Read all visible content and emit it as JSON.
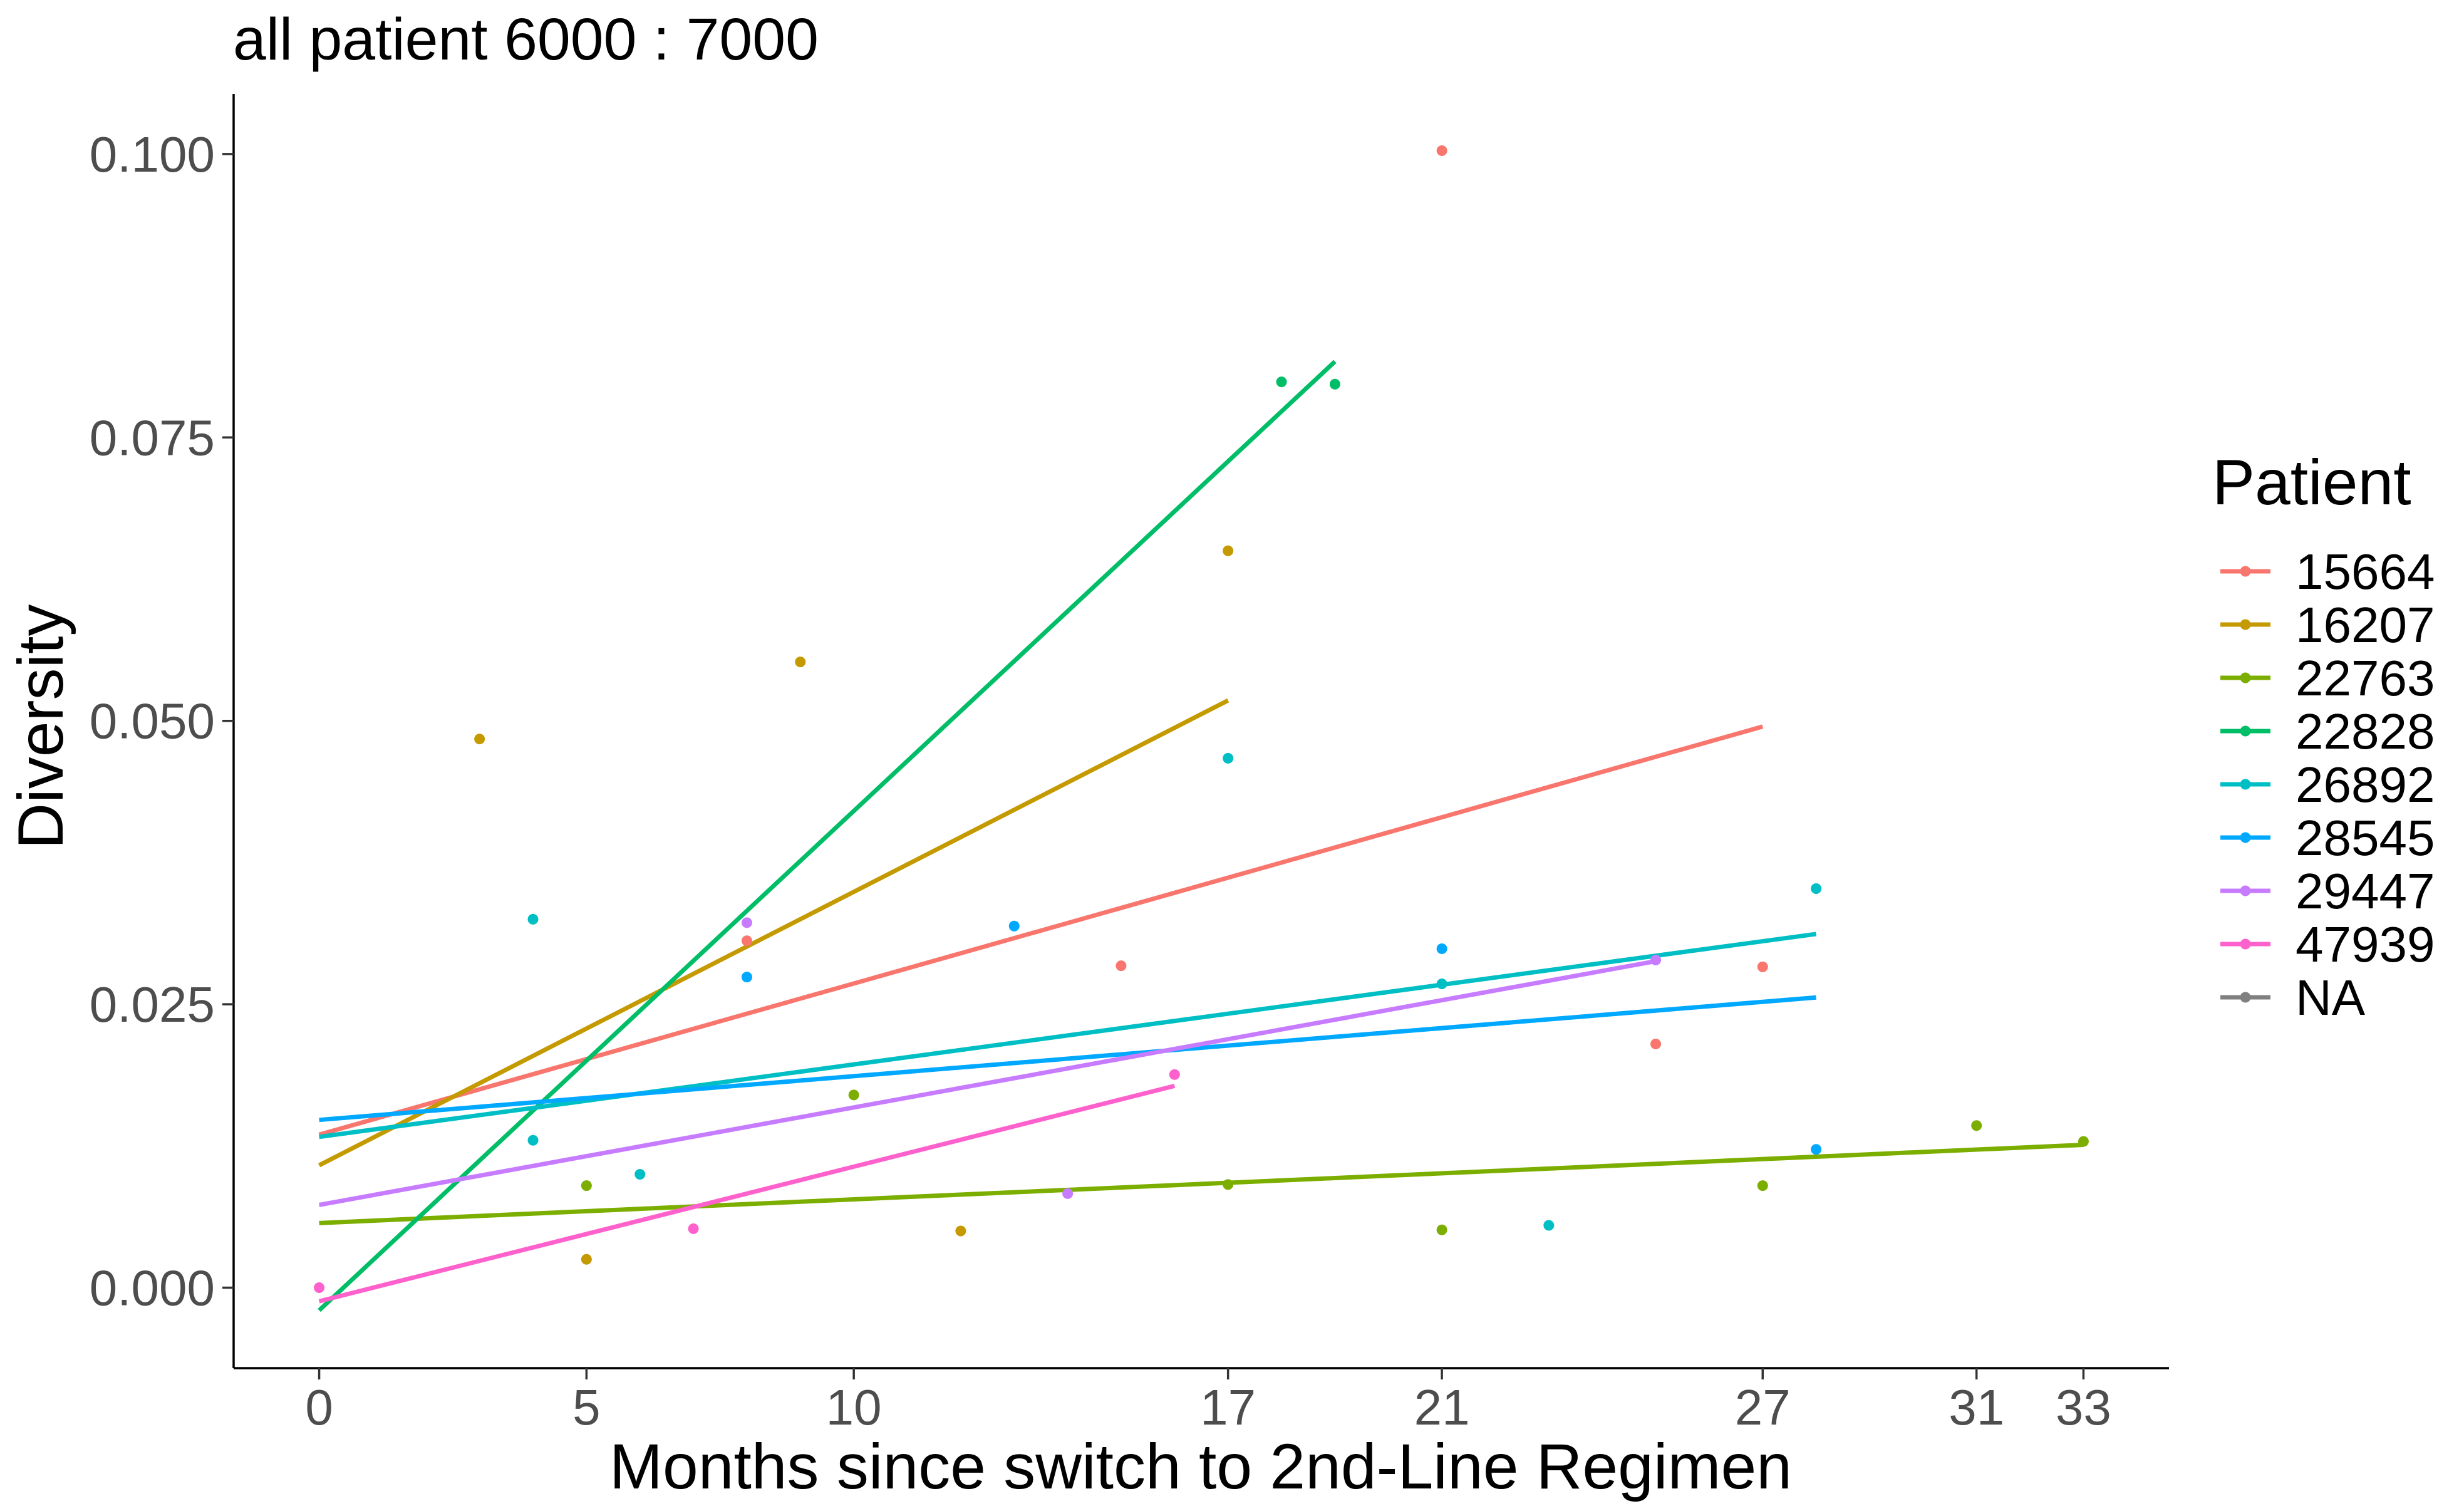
{
  "chart_data": {
    "type": "scatter",
    "title": "all patient 6000 : 7000",
    "xlabel": "Months since switch to 2nd-Line Regimen",
    "ylabel": "Diversity",
    "x_ticks": [
      0,
      5,
      10,
      17,
      21,
      27,
      31,
      33
    ],
    "y_ticks": [
      "0.000",
      "0.025",
      "0.050",
      "0.075",
      "0.100"
    ],
    "y_tick_values": [
      0,
      0.025,
      0.05,
      0.075,
      0.1
    ],
    "xlim": [
      -1.6,
      34.6
    ],
    "ylim": [
      -0.0071,
      0.1053
    ],
    "grid": false,
    "legend": {
      "title": "Patient",
      "placement": "right"
    },
    "series": [
      {
        "name": "15664",
        "color": "#F8766D",
        "points": [
          [
            8,
            0.0306
          ],
          [
            15,
            0.0284
          ],
          [
            21,
            0.1003
          ],
          [
            25,
            0.0215
          ],
          [
            27,
            0.0283
          ]
        ],
        "fit": [
          [
            0,
            0.0135
          ],
          [
            27,
            0.0495
          ]
        ]
      },
      {
        "name": "16207",
        "color": "#C49A00",
        "points": [
          [
            3,
            0.0484
          ],
          [
            5,
            0.0025
          ],
          [
            9,
            0.0552
          ],
          [
            12,
            0.005
          ],
          [
            17,
            0.065
          ]
        ],
        "fit": [
          [
            0,
            0.0108
          ],
          [
            17,
            0.0518
          ]
        ]
      },
      {
        "name": "22763",
        "color": "#7CAE00",
        "points": [
          [
            5,
            0.009
          ],
          [
            10,
            0.017
          ],
          [
            17,
            0.0091
          ],
          [
            21,
            0.0051
          ],
          [
            27,
            0.009
          ],
          [
            31,
            0.0143
          ],
          [
            33,
            0.0129
          ]
        ],
        "fit": [
          [
            0,
            0.0057
          ],
          [
            33,
            0.0126
          ]
        ]
      },
      {
        "name": "22828",
        "color": "#00BE67",
        "points": [
          [
            18,
            0.0799
          ],
          [
            19,
            0.0797
          ]
        ],
        "fit": [
          [
            0,
            -0.002
          ],
          [
            19,
            0.0817
          ]
        ]
      },
      {
        "name": "26892",
        "color": "#00BFC4",
        "points": [
          [
            4,
            0.0325
          ],
          [
            4,
            0.013
          ],
          [
            6,
            0.01
          ],
          [
            17,
            0.0467
          ],
          [
            21,
            0.0268
          ],
          [
            23,
            0.0055
          ],
          [
            28,
            0.0352
          ]
        ],
        "fit": [
          [
            0,
            0.0133
          ],
          [
            28,
            0.0312
          ]
        ]
      },
      {
        "name": "28545",
        "color": "#00A9FF",
        "points": [
          [
            8,
            0.0274
          ],
          [
            13,
            0.0319
          ],
          [
            21,
            0.0299
          ],
          [
            28,
            0.0122
          ]
        ],
        "fit": [
          [
            0,
            0.0148
          ],
          [
            28,
            0.0256
          ]
        ]
      },
      {
        "name": "29447",
        "color": "#C77CFF",
        "points": [
          [
            8,
            0.0322
          ],
          [
            14,
            0.0083
          ],
          [
            25,
            0.0289
          ]
        ],
        "fit": [
          [
            0,
            0.0073
          ],
          [
            25,
            0.0288
          ]
        ]
      },
      {
        "name": "47939",
        "color": "#FF61CC",
        "points": [
          [
            0,
            0.0
          ],
          [
            7,
            0.0052
          ],
          [
            16,
            0.0188
          ]
        ],
        "fit": [
          [
            0,
            -0.0012
          ],
          [
            16,
            0.0178
          ]
        ]
      },
      {
        "name": "NA",
        "color": "#808080",
        "points": [],
        "fit": []
      }
    ]
  }
}
